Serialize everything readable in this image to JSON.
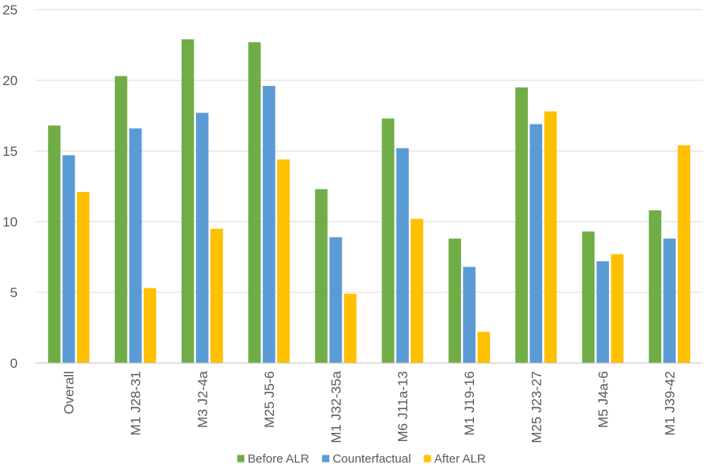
{
  "chart_data": {
    "type": "bar",
    "title": "",
    "xlabel": "",
    "ylabel": "",
    "ylim": [
      0,
      25
    ],
    "yticks": [
      0,
      5,
      10,
      15,
      20,
      25
    ],
    "grid": true,
    "legend_position": "bottom",
    "categories": [
      "Overall",
      "M1 J28-31",
      "M3 J2-4a",
      "M25 J5-6",
      "M1 J32-35a",
      "M6 J11a-13",
      "M1 J19-16",
      "M25 J23-27",
      "M5 J4a-6",
      "M1 J39-42"
    ],
    "series": [
      {
        "name": "Before ALR",
        "color": "#70AD47",
        "values": [
          16.8,
          20.3,
          22.9,
          22.7,
          12.3,
          17.3,
          8.8,
          19.5,
          9.3,
          10.8
        ]
      },
      {
        "name": "Counterfactual",
        "color": "#5B9BD5",
        "values": [
          14.7,
          16.6,
          17.7,
          19.6,
          8.9,
          15.2,
          6.8,
          16.9,
          7.2,
          8.8
        ]
      },
      {
        "name": "After ALR",
        "color": "#FFC000",
        "values": [
          12.1,
          5.3,
          9.5,
          14.4,
          4.9,
          10.2,
          2.2,
          17.8,
          7.7,
          15.4
        ]
      }
    ]
  }
}
